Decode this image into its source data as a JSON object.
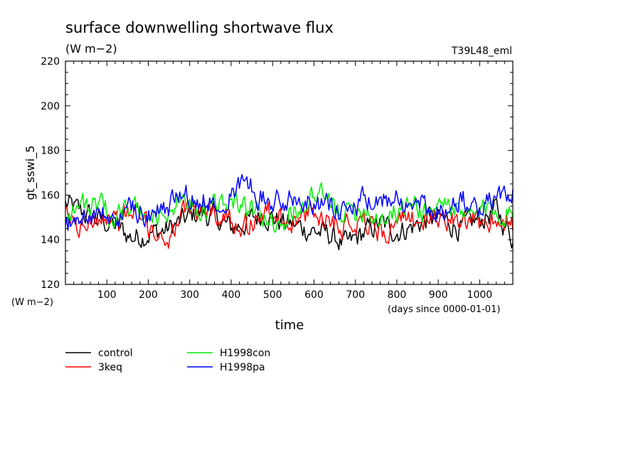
{
  "chart_data": {
    "type": "line",
    "title": "surface downwelling shortwave flux",
    "units": "(W m−2)",
    "run_label": "T39L48_eml",
    "ylabel": "gt_sswi_5",
    "yunits": "(W m−2)",
    "xlabel": "time",
    "xunits": "(days since 0000-01-01)",
    "xlim": [
      0,
      1080
    ],
    "ylim": [
      120,
      220
    ],
    "xticks": [
      100,
      200,
      300,
      400,
      500,
      600,
      700,
      800,
      900,
      1000
    ],
    "yticks": [
      120,
      140,
      160,
      180,
      200,
      220
    ],
    "series": [
      {
        "name": "control",
        "color": "#000000",
        "x": [
          0,
          40,
          80,
          120,
          160,
          200,
          240,
          280,
          320,
          360,
          400,
          440,
          480,
          520,
          560,
          600,
          640,
          680,
          720,
          760,
          800,
          840,
          880,
          920,
          960,
          1000,
          1040,
          1080
        ],
        "y": [
          156,
          152,
          149,
          146,
          141,
          143,
          144,
          148,
          152,
          150,
          145,
          148,
          152,
          148,
          146,
          144,
          142,
          137,
          143,
          147,
          144,
          146,
          150,
          148,
          145,
          149,
          153,
          141
        ]
      },
      {
        "name": "3keq",
        "color": "#ff0000",
        "x": [
          0,
          40,
          80,
          120,
          160,
          200,
          240,
          280,
          320,
          360,
          400,
          440,
          480,
          520,
          560,
          600,
          640,
          680,
          720,
          760,
          800,
          840,
          880,
          920,
          960,
          1000,
          1040,
          1080
        ],
        "y": [
          150,
          145,
          153,
          149,
          152,
          146,
          140,
          149,
          155,
          152,
          150,
          146,
          153,
          150,
          148,
          152,
          149,
          147,
          151,
          143,
          146,
          150,
          148,
          151,
          145,
          148,
          150,
          146
        ]
      },
      {
        "name": "H1998con",
        "color": "#00ee00",
        "x": [
          0,
          40,
          80,
          120,
          160,
          200,
          240,
          280,
          320,
          360,
          400,
          440,
          480,
          520,
          560,
          600,
          640,
          680,
          720,
          760,
          800,
          840,
          880,
          920,
          960,
          1000,
          1040,
          1080
        ],
        "y": [
          152,
          156,
          154,
          151,
          155,
          149,
          152,
          158,
          150,
          155,
          160,
          154,
          150,
          148,
          153,
          160,
          156,
          152,
          155,
          150,
          153,
          156,
          152,
          158,
          149,
          152,
          155,
          150
        ]
      },
      {
        "name": "H1998pa",
        "color": "#0000ff",
        "x": [
          0,
          40,
          80,
          120,
          160,
          200,
          240,
          280,
          320,
          360,
          400,
          440,
          480,
          520,
          560,
          600,
          640,
          680,
          720,
          760,
          800,
          840,
          880,
          920,
          960,
          1000,
          1040,
          1080
        ],
        "y": [
          146,
          150,
          152,
          148,
          155,
          151,
          153,
          162,
          157,
          159,
          161,
          166,
          158,
          156,
          160,
          158,
          154,
          152,
          157,
          155,
          162,
          154,
          156,
          153,
          157,
          154,
          158,
          162
        ]
      }
    ],
    "legend": [
      {
        "label": "control",
        "color": "#000000"
      },
      {
        "label": "3keq",
        "color": "#ff0000"
      },
      {
        "label": "H1998con",
        "color": "#00ee00"
      },
      {
        "label": "H1998pa",
        "color": "#0000ff"
      }
    ]
  }
}
